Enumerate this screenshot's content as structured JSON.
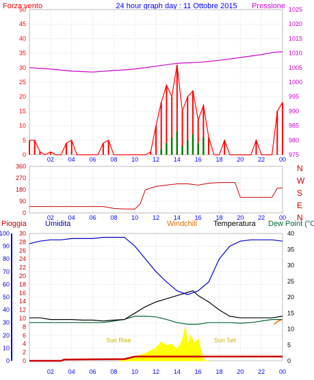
{
  "title": "24 hour graph day : 11 Ottobre 2015",
  "colors": {
    "wind": "#ff0000",
    "gust": "#008000",
    "pressure": "#cc00cc",
    "direction": "#cc0000",
    "rain": "#cc0000",
    "humidity": "#0000cc",
    "windchill": "#e07000",
    "temperature": "#000000",
    "dewpoint": "#006633",
    "sun": "#ffff00",
    "sunlabel": "#c8b400",
    "axis": "#0000ff",
    "frame": "#bbbbbb"
  },
  "x_ticks": [
    "02",
    "04",
    "06",
    "08",
    "10",
    "12",
    "14",
    "16",
    "18",
    "20",
    "22",
    "00"
  ],
  "chart_data": [
    {
      "type": "line",
      "name": "wind-pressure",
      "legend": {
        "left": "Forza vento",
        "right": "Pressione"
      },
      "left_ticks": [
        "50",
        "45",
        "40",
        "35",
        "30",
        "25",
        "20",
        "15",
        "10",
        "5",
        "0"
      ],
      "right_ticks": [
        "1025",
        "1020",
        "1015",
        "1010",
        "1005",
        "1000",
        "995",
        "990",
        "985",
        "980",
        "975"
      ],
      "ylim_left": [
        0,
        50
      ],
      "ylim_right": [
        975,
        1025
      ],
      "xlim": [
        0,
        24
      ],
      "pressure": {
        "x": [
          0,
          2,
          4,
          6,
          8,
          10,
          12,
          14,
          16,
          18,
          20,
          22,
          23,
          24
        ],
        "y": [
          1005,
          1004.5,
          1003.8,
          1003.5,
          1004,
          1004.5,
          1005.5,
          1006.5,
          1006.8,
          1007.5,
          1008.5,
          1009.5,
          1010.2,
          1010.5
        ]
      },
      "wind": {
        "x": [
          0,
          0.5,
          1,
          1.5,
          2,
          2.5,
          3,
          3.5,
          4,
          4.5,
          5,
          5.5,
          6,
          6.5,
          7,
          7.5,
          8,
          8.5,
          9,
          9.5,
          10,
          10.5,
          11,
          11.5,
          12,
          12.5,
          13,
          13.5,
          14,
          14.5,
          15,
          15.5,
          16,
          16.5,
          17,
          17.5,
          18,
          18.5,
          19,
          19.5,
          20,
          20.5,
          21,
          21.5,
          22,
          22.5,
          23,
          23.5,
          24
        ],
        "y": [
          5,
          5,
          1,
          0,
          1,
          0,
          0,
          4,
          5,
          0,
          0,
          0,
          0,
          0,
          4,
          5,
          0,
          0,
          0,
          0,
          0,
          0,
          0,
          1,
          10,
          18,
          24,
          20,
          31,
          15,
          20,
          22,
          12,
          17,
          6,
          0,
          0,
          5,
          0,
          0,
          0,
          0,
          0,
          5,
          0,
          0,
          0,
          15,
          18
        ]
      },
      "gust": {
        "x": [
          12,
          12.5,
          13,
          13.5,
          14,
          14.5,
          15,
          15.5,
          16,
          16.5,
          17
        ],
        "y": [
          0,
          2,
          4,
          6,
          8,
          3,
          5,
          7,
          4,
          6,
          0
        ]
      }
    },
    {
      "type": "line",
      "name": "wind-direction",
      "ticks": [
        "360",
        "270",
        "180",
        "90",
        "0"
      ],
      "ylim": [
        0,
        360
      ],
      "xlim": [
        0,
        24
      ],
      "direction_labels": [
        "N",
        "W",
        "S",
        "E",
        "N"
      ],
      "direction": {
        "x": [
          0,
          2,
          4,
          6,
          7,
          8,
          9,
          10,
          10.5,
          11,
          12,
          13,
          14,
          15,
          16,
          17,
          18,
          19,
          19.5,
          20,
          21,
          22,
          23,
          23.5,
          24
        ],
        "y": [
          50,
          50,
          50,
          50,
          50,
          35,
          30,
          30,
          70,
          180,
          205,
          215,
          225,
          225,
          215,
          230,
          235,
          235,
          235,
          120,
          120,
          120,
          120,
          190,
          195
        ]
      }
    },
    {
      "type": "line",
      "name": "temperature-humidity-rain",
      "legend": {
        "rain": "Pioggia",
        "humidity": "Umidita",
        "windchill": "Windchill",
        "temperature": "Temperatura",
        "dewpoint": "Dew Point (°C"
      },
      "humidity_ticks": [
        "100",
        "90",
        "80",
        "70",
        "60",
        "50",
        "40",
        "30",
        "20",
        "10",
        "0"
      ],
      "rain_ticks": [
        "30",
        "28",
        "26",
        "24",
        "22",
        "20",
        "18",
        "16",
        "14",
        "12",
        "10",
        "8",
        "6",
        "4",
        "2",
        "0"
      ],
      "temp_ticks": [
        "40",
        "35",
        "30",
        "25",
        "20",
        "15",
        "10",
        "5",
        "0"
      ],
      "ylim_humidity": [
        0,
        100
      ],
      "ylim_temp": [
        0,
        40
      ],
      "xlim": [
        0,
        24
      ],
      "sun_rise_label": "Sun Rise",
      "sun_set_label": "Sun Set",
      "humidity": {
        "x": [
          0,
          1,
          2,
          3,
          4,
          5,
          6,
          7,
          8,
          9,
          10,
          11,
          12,
          13,
          14,
          15,
          16,
          17,
          18,
          19,
          20,
          21,
          22,
          23,
          24
        ],
        "y": [
          92,
          94,
          95,
          95,
          96,
          96,
          96,
          97,
          97,
          97,
          90,
          80,
          70,
          62,
          55,
          52,
          55,
          62,
          80,
          90,
          94,
          95,
          95,
          95,
          94
        ]
      },
      "temperature": {
        "x": [
          0,
          1,
          2,
          3,
          4,
          5,
          6,
          7,
          8,
          9,
          10,
          11,
          12,
          13,
          14,
          15,
          15.5,
          16,
          17,
          18,
          19,
          20,
          21,
          22,
          23,
          24
        ],
        "y": [
          13.5,
          13.5,
          13,
          13,
          13,
          12.8,
          12.8,
          12.5,
          12.8,
          13,
          15,
          17,
          18.5,
          19.5,
          20.5,
          21.5,
          22,
          20.5,
          18.5,
          16,
          14,
          13.5,
          13.5,
          13.5,
          13.5,
          14
        ]
      },
      "dewpoint": {
        "x": [
          0,
          1,
          2,
          3,
          4,
          5,
          6,
          7,
          8,
          9,
          10,
          11,
          12,
          13,
          14,
          15,
          16,
          17,
          18,
          19,
          20,
          21,
          22,
          23,
          24
        ],
        "y": [
          12,
          12,
          12,
          12,
          12,
          12,
          12,
          12,
          12.5,
          13,
          14,
          14,
          13.8,
          13,
          12,
          11.5,
          11.5,
          12,
          12,
          12,
          11.8,
          12,
          12.5,
          13,
          13
        ]
      },
      "windchill": {
        "x": [
          23.2,
          23.6,
          24
        ],
        "y": [
          11.5,
          12.5,
          13
        ]
      },
      "rain": {
        "x": [
          0,
          3,
          3.3,
          9,
          10,
          24
        ],
        "y": [
          0,
          0,
          0.3,
          0.4,
          1,
          1
        ]
      },
      "sun": {
        "x": [
          8.5,
          9,
          10,
          11,
          12,
          12.5,
          13,
          13.5,
          14,
          14.5,
          14.8,
          15,
          15.3,
          15.6,
          16,
          16.3,
          16.6,
          17
        ],
        "y": [
          0,
          1,
          3,
          6,
          10,
          15,
          12,
          13,
          9,
          16,
          27,
          12,
          20,
          14,
          17,
          7,
          0,
          0
        ]
      }
    }
  ]
}
